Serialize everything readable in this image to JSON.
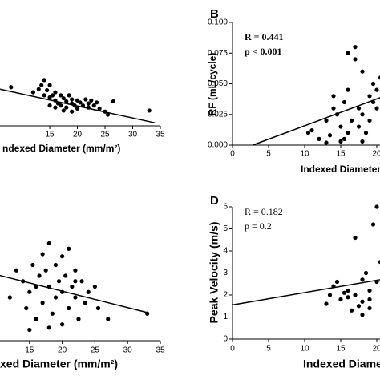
{
  "chart_data": [
    {
      "type": "scatter",
      "x_label": "ndexed Diameter (mm/m²)",
      "xlim": [
        6,
        35
      ],
      "ylim": [
        0,
        1
      ],
      "xticks": [
        15,
        20,
        25,
        30,
        35
      ],
      "x": [
        8,
        12,
        13,
        13.5,
        14,
        14,
        14.5,
        15,
        15,
        15.5,
        16,
        16,
        16.5,
        17,
        17,
        17.5,
        18,
        18,
        18.5,
        19,
        19,
        19.5,
        20,
        20,
        20.5,
        21,
        21.5,
        22,
        22,
        22.5,
        23,
        23.5,
        24,
        25,
        25.5,
        26.5,
        33,
        15,
        16,
        17.5,
        19
      ],
      "y": [
        0.38,
        0.33,
        0.36,
        0.4,
        0.3,
        0.45,
        0.35,
        0.28,
        0.4,
        0.3,
        0.25,
        0.33,
        0.22,
        0.3,
        0.2,
        0.27,
        0.24,
        0.18,
        0.3,
        0.22,
        0.26,
        0.2,
        0.25,
        0.17,
        0.23,
        0.2,
        0.26,
        0.22,
        0.18,
        0.25,
        0.2,
        0.23,
        0.17,
        0.14,
        0.11,
        0.24,
        0.15,
        0.2,
        0.18,
        0.15,
        0.14
      ],
      "fit": {
        "x": [
          6,
          34
        ],
        "y": [
          0.36,
          0.03
        ]
      },
      "color": "#000000"
    },
    {
      "type": "scatter",
      "panel": "B",
      "x_label": "Indexed Diameter (",
      "y_label": "RF (mL/cycle)",
      "annotations": [
        "R = 0.441",
        "p < 0.001"
      ],
      "annotation_bold": true,
      "xlim": [
        0,
        40
      ],
      "ylim": [
        0,
        0.1
      ],
      "xticks": [
        0,
        5,
        10,
        15,
        20
      ],
      "yticks": [
        {
          "value": 0,
          "label": "0.000"
        },
        {
          "value": 0.025,
          "label": "0.025"
        },
        {
          "value": 0.05,
          "label": "0.050"
        },
        {
          "value": 0.075,
          "label": "0.075"
        },
        {
          "value": 0.1,
          "label": "0.100"
        }
      ],
      "x": [
        10.5,
        11,
        12,
        13,
        13.5,
        14,
        14.5,
        15,
        15,
        15.5,
        16,
        16,
        16.5,
        17,
        17,
        17.5,
        18,
        18,
        18.5,
        19,
        19,
        19.5,
        20,
        20,
        20.5,
        17.5,
        18,
        19.5,
        15.5,
        16,
        13,
        14
      ],
      "y": [
        0.01,
        0.012,
        0.005,
        0.02,
        0.008,
        0.03,
        0.025,
        0.003,
        0.015,
        0.035,
        0.045,
        0.075,
        0.02,
        0.08,
        0.07,
        0.03,
        0.025,
        0.06,
        0.01,
        0.04,
        0.02,
        0.035,
        0.03,
        0.045,
        0.055,
        0.015,
        0.003,
        0.05,
        0.005,
        0.01,
        0.002,
        0.04
      ],
      "fit": {
        "x": [
          2.8,
          22
        ],
        "y": [
          0,
          0.042
        ]
      },
      "color": "#000000"
    },
    {
      "type": "scatter",
      "x_label": "xed Diameter (mm/m²)",
      "xlim": [
        10,
        35
      ],
      "ylim": [
        0,
        1
      ],
      "xticks": [
        15,
        20,
        25,
        30,
        35
      ],
      "x": [
        12,
        13,
        14,
        14.5,
        15,
        15.5,
        16,
        16,
        16.5,
        17,
        17,
        17.5,
        18,
        18,
        18.5,
        19,
        19,
        19.5,
        20,
        20,
        20.5,
        21,
        21,
        21.5,
        22,
        22,
        22.5,
        23,
        23.5,
        24,
        25,
        25.5,
        27,
        33,
        15,
        18,
        22,
        20
      ],
      "y": [
        0.4,
        0.65,
        0.55,
        0.3,
        0.45,
        0.7,
        0.5,
        0.2,
        0.6,
        0.8,
        0.35,
        0.65,
        0.9,
        0.5,
        0.25,
        0.4,
        0.7,
        0.55,
        0.45,
        0.15,
        0.6,
        0.3,
        0.85,
        0.5,
        0.4,
        0.65,
        0.2,
        0.55,
        0.35,
        0.45,
        0.5,
        0.3,
        0.2,
        0.25,
        0.1,
        0.12,
        0.55,
        0.78
      ],
      "fit": {
        "x": [
          10,
          33
        ],
        "y": [
          0.61,
          0.26
        ]
      },
      "color": "#000000"
    },
    {
      "type": "scatter",
      "panel": "D",
      "x_label": "Indexed Diameter",
      "y_label": "Peak Velocity (m/s)",
      "annotations": [
        "R = 0.182",
        "p = 0.2"
      ],
      "annotation_bold": false,
      "xlim": [
        0,
        40
      ],
      "ylim": [
        0,
        6
      ],
      "xticks": [
        0,
        5,
        10,
        15,
        20
      ],
      "yticks": [
        0,
        1,
        2,
        3,
        4,
        5,
        6
      ],
      "x": [
        13,
        13.5,
        14,
        14.5,
        15,
        15.5,
        16,
        16.5,
        17,
        17,
        17.5,
        18,
        18,
        18.5,
        19,
        19,
        19.5,
        20,
        20,
        20.5,
        16,
        18,
        19
      ],
      "y": [
        1.6,
        2,
        2.4,
        2.6,
        1.8,
        2.1,
        1.9,
        1.3,
        4.6,
        2,
        1.5,
        1.1,
        2.7,
        3,
        2.2,
        1.8,
        5.2,
        2.6,
        6,
        3.5,
        2.2,
        1.7,
        1.4
      ],
      "fit": {
        "x": [
          0,
          20.5
        ],
        "y": [
          1.55,
          2.7
        ]
      },
      "color": "#000000"
    }
  ]
}
